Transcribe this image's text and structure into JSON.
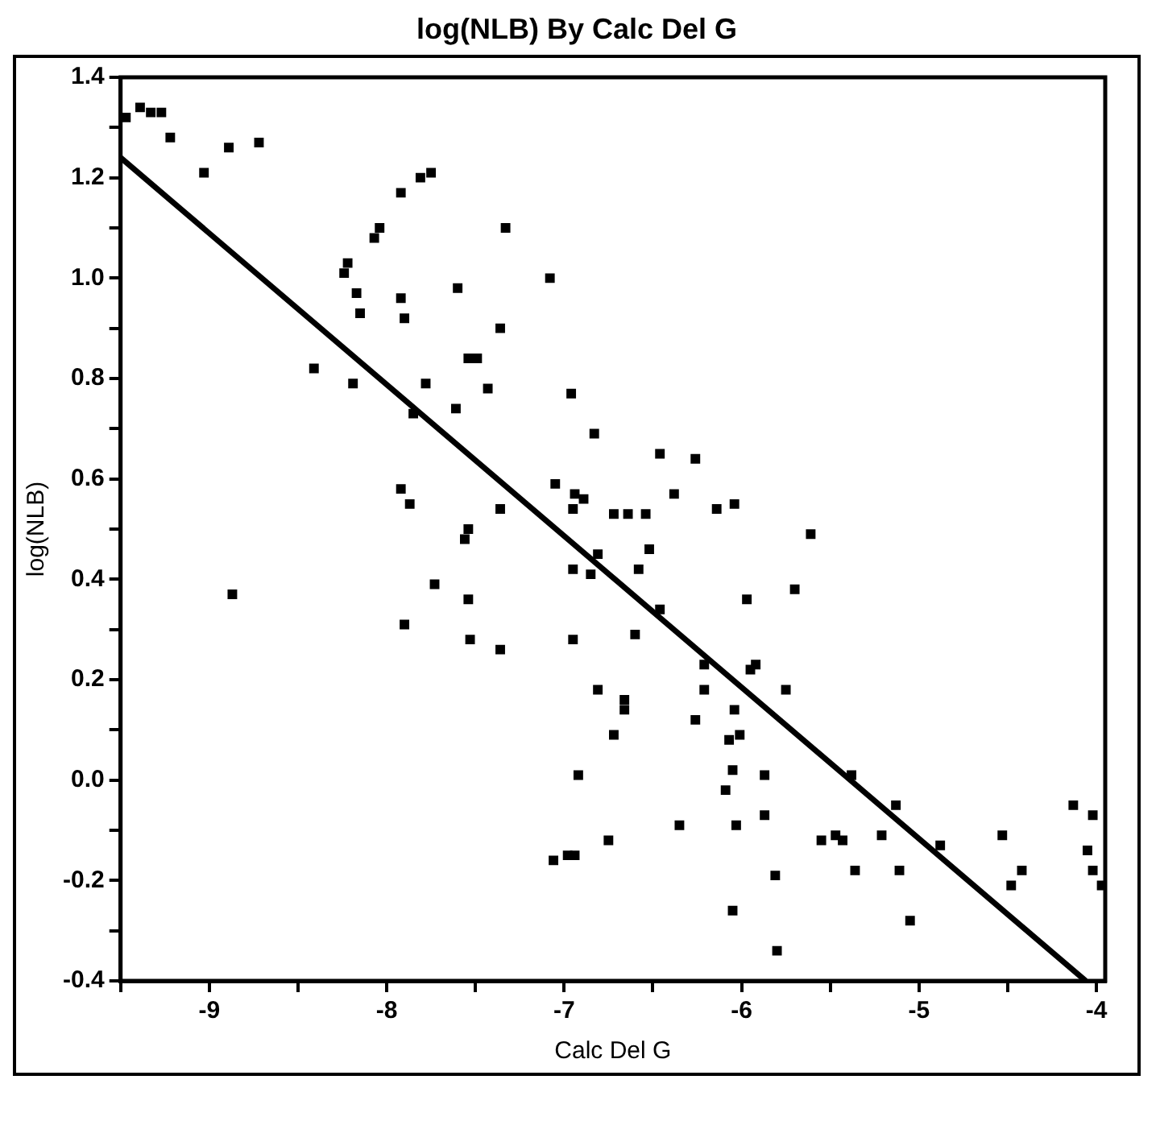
{
  "chart_data": {
    "type": "scatter",
    "title": "log(NLB) By Calc Del G",
    "xlabel": "Calc Del G",
    "ylabel": "log(NLB)",
    "xlim": [
      -9.5,
      -3.95
    ],
    "ylim": [
      -0.4,
      1.4
    ],
    "xticks": [
      {
        "value": -9.5,
        "label": null
      },
      -9,
      {
        "value": -8.5,
        "label": null
      },
      -8,
      {
        "value": -7.5,
        "label": null
      },
      -7,
      {
        "value": -6.5,
        "label": null
      },
      -6,
      {
        "value": -5.5,
        "label": null
      },
      -5,
      {
        "value": -4.5,
        "label": null
      },
      -4
    ],
    "yticks": [
      {
        "value": -0.4,
        "label": "-0.4"
      },
      {
        "value": -0.3,
        "label": null
      },
      {
        "value": -0.2,
        "label": "-0.2"
      },
      {
        "value": -0.1,
        "label": null
      },
      {
        "value": 0,
        "label": "0.0"
      },
      {
        "value": 0.1,
        "label": null
      },
      {
        "value": 0.2,
        "label": "0.2"
      },
      {
        "value": 0.3,
        "label": null
      },
      {
        "value": 0.4,
        "label": "0.4"
      },
      {
        "value": 0.5,
        "label": null
      },
      {
        "value": 0.6,
        "label": "0.6"
      },
      {
        "value": 0.7,
        "label": null
      },
      {
        "value": 0.8,
        "label": "0.8"
      },
      {
        "value": 0.9,
        "label": null
      },
      {
        "value": 1,
        "label": "1.0"
      },
      {
        "value": 1.1,
        "label": null
      },
      {
        "value": 1.2,
        "label": "1.2"
      },
      {
        "value": 1.3,
        "label": null
      },
      {
        "value": 1.4,
        "label": "1.4"
      }
    ],
    "grid": false,
    "legend": false,
    "series": [
      {
        "color": "#000000",
        "marker": "square",
        "x": [
          -9.47,
          -9.39,
          -9.33,
          -9.27,
          -9.22,
          -9.03,
          -8.89,
          -8.72,
          -7.92,
          -7.81,
          -7.75,
          -8.04,
          -8.07,
          -7.33,
          -8.22,
          -8.24,
          -7.08,
          -8.17,
          -8.15,
          -7.92,
          -7.9,
          -7.6,
          -7.36,
          -7.54,
          -7.49,
          -8.41,
          -8.19,
          -7.78,
          -7.43,
          -6.96,
          -7.61,
          -7.85,
          -6.83,
          -7.92,
          -7.87,
          -7.36,
          -7.05,
          -6.94,
          -6.89,
          -6.95,
          -7.54,
          -6.46,
          -6.26,
          -6.38,
          -6.72,
          -6.64,
          -6.54,
          -6.14,
          -6.04,
          -5.61,
          -7.56,
          -6.95,
          -6.85,
          -8.87,
          -7.73,
          -7.54,
          -7.9,
          -7.53,
          -7.36,
          -6.95,
          -6.81,
          -6.92,
          -7.06,
          -6.98,
          -6.94,
          -6.52,
          -6.58,
          -6.81,
          -5.97,
          -5.7,
          -6.46,
          -6.6,
          -6.21,
          -5.95,
          -5.92,
          -6.21,
          -5.75,
          -6.66,
          -6.66,
          -6.04,
          -6.26,
          -6.72,
          -6.07,
          -6.01,
          -6.05,
          -5.87,
          -5.38,
          -6.09,
          -5.13,
          -4.13,
          -4.02,
          -6.35,
          -6.03,
          -5.87,
          -6.75,
          -5.55,
          -5.47,
          -5.43,
          -5.21,
          -4.88,
          -4.53,
          -4.05,
          -5.36,
          -5.11,
          -4.42,
          -4.48,
          -4.02,
          -3.97,
          -5.81,
          -6.05,
          -5.05,
          -5.8
        ],
        "values": [
          1.32,
          1.34,
          1.33,
          1.33,
          1.28,
          1.21,
          1.26,
          1.27,
          1.17,
          1.2,
          1.21,
          1.1,
          1.08,
          1.1,
          1.03,
          1.01,
          1.0,
          0.97,
          0.93,
          0.96,
          0.92,
          0.98,
          0.9,
          0.84,
          0.84,
          0.82,
          0.79,
          0.79,
          0.78,
          0.77,
          0.74,
          0.73,
          0.69,
          0.58,
          0.55,
          0.54,
          0.59,
          0.57,
          0.56,
          0.54,
          0.5,
          0.65,
          0.64,
          0.57,
          0.53,
          0.53,
          0.53,
          0.54,
          0.55,
          0.49,
          0.48,
          0.42,
          0.41,
          0.37,
          0.39,
          0.36,
          0.31,
          0.28,
          0.26,
          0.28,
          0.18,
          0.01,
          -0.16,
          -0.15,
          -0.15,
          0.46,
          0.42,
          0.45,
          0.36,
          0.38,
          0.34,
          0.29,
          0.23,
          0.22,
          0.23,
          0.18,
          0.18,
          0.16,
          0.14,
          0.14,
          0.12,
          0.09,
          0.08,
          0.09,
          0.02,
          0.01,
          0.01,
          -0.02,
          -0.05,
          -0.05,
          -0.07,
          -0.09,
          -0.09,
          -0.07,
          -0.12,
          -0.12,
          -0.11,
          -0.12,
          -0.11,
          -0.13,
          -0.11,
          -0.14,
          -0.18,
          -0.18,
          -0.18,
          -0.21,
          -0.18,
          -0.21,
          -0.19,
          -0.26,
          -0.28,
          -0.34
        ]
      },
      {
        "type": "line",
        "color": "#000000",
        "line_style": "solid",
        "x": [
          -9.5,
          -4.06
        ],
        "values": [
          1.24,
          -0.4
        ]
      }
    ]
  }
}
